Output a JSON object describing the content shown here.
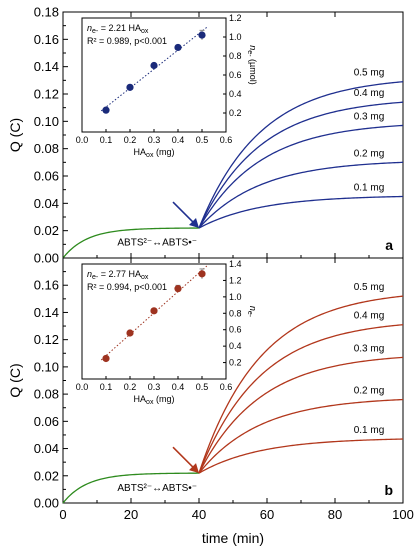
{
  "colors": {
    "green": "#2e8b1e",
    "blue": "#1f2f8f",
    "red": "#b2371c",
    "inset_point_blue": "#1a2a7a",
    "inset_point_red": "#9e3320"
  },
  "labels": {
    "panel_a": "a",
    "panel_b": "b",
    "x_axis": "time (min)",
    "y_axis": "Q (C)",
    "equilibrium": "ABTS²⁻↔ABTS•⁻"
  },
  "chart_data": [
    {
      "type": "line",
      "panel": "a",
      "xlabel": "time (min)",
      "ylabel": "Q (C)",
      "xlim": [
        0,
        100
      ],
      "ylim": [
        0,
        0.18
      ],
      "x_ticks": [
        "0",
        "20",
        "40",
        "60",
        "80",
        "100"
      ],
      "y_ticks": [
        "0.00",
        "0.02",
        "0.04",
        "0.06",
        "0.08",
        "0.10",
        "0.12",
        "0.14",
        "0.16",
        "0.18"
      ],
      "baseline": {
        "x0": 0,
        "x_inject": 40,
        "y_plateau": 0.022
      },
      "series": [
        {
          "name": "0.1 mg",
          "end_value": 0.045
        },
        {
          "name": "0.2 mg",
          "end_value": 0.07
        },
        {
          "name": "0.3 mg",
          "end_value": 0.097
        },
        {
          "name": "0.4 mg",
          "end_value": 0.114
        },
        {
          "name": "0.5 mg",
          "end_value": 0.129
        }
      ],
      "annotation": "ABTS²⁻↔ABTS•⁻",
      "inset": {
        "type": "scatter",
        "equation": "n_e- = 2.21 HA_ox",
        "eq_lead": "n",
        "eq_sub": "e-",
        "eq_mid": " = 2.21 HA",
        "eq_sub2": "ox",
        "stats": "R² = 0.989, p<0.001",
        "xlabel_main": "HA",
        "xlabel_sub": "ox",
        "xlabel_tail": " (mg)",
        "ylabel_main": "n",
        "ylabel_sub": "e-",
        "ylabel_tail": " (µmol)",
        "xlim": [
          0.0,
          0.6
        ],
        "ylim": [
          0.0,
          1.2
        ],
        "x_ticks": [
          "0.0",
          "0.1",
          "0.2",
          "0.3",
          "0.4",
          "0.5",
          "0.6"
        ],
        "y_ticks": [
          "0.2",
          "0.4",
          "0.6",
          "0.8",
          "1.0",
          "1.2"
        ],
        "x": [
          0.1,
          0.2,
          0.3,
          0.4,
          0.5
        ],
        "y": [
          0.23,
          0.47,
          0.7,
          0.89,
          1.02
        ],
        "err": [
          0.0,
          0.0,
          0.0,
          0.0,
          0.05
        ]
      }
    },
    {
      "type": "line",
      "panel": "b",
      "xlabel": "time (min)",
      "ylabel": "Q (C)",
      "xlim": [
        0,
        100
      ],
      "ylim": [
        0,
        0.18
      ],
      "x_ticks": [
        "0",
        "20",
        "40",
        "60",
        "80",
        "100"
      ],
      "y_ticks": [
        "0.00",
        "0.02",
        "0.04",
        "0.06",
        "0.08",
        "0.10",
        "0.12",
        "0.14",
        "0.16",
        "0.18"
      ],
      "baseline": {
        "x0": 0,
        "x_inject": 40,
        "y_plateau": 0.022
      },
      "series": [
        {
          "name": "0.1 mg",
          "end_value": 0.047
        },
        {
          "name": "0.2 mg",
          "end_value": 0.076
        },
        {
          "name": "0.3 mg",
          "end_value": 0.107
        },
        {
          "name": "0.4 mg",
          "end_value": 0.131
        },
        {
          "name": "0.5 mg",
          "end_value": 0.152
        }
      ],
      "annotation": "ABTS²⁻↔ABTS•⁻",
      "inset": {
        "type": "scatter",
        "equation": "n_e- = 2.77 HA_ox",
        "eq_lead": "n",
        "eq_sub": "e-",
        "eq_mid": " = 2.77 HA",
        "eq_sub2": "ox",
        "stats": "R² = 0.994, p<0.001",
        "xlabel_main": "HA",
        "xlabel_sub": "ox",
        "xlabel_tail": " (mg)",
        "ylabel_main": "n",
        "ylabel_sub": "e-",
        "ylabel_tail": "",
        "xlim": [
          0.0,
          0.6
        ],
        "ylim": [
          0.0,
          1.4
        ],
        "x_ticks": [
          "0.0",
          "0.1",
          "0.2",
          "0.3",
          "0.4",
          "0.5",
          "0.6"
        ],
        "y_ticks": [
          "0.2",
          "0.4",
          "0.6",
          "0.8",
          "1.0",
          "1.2",
          "1.4"
        ],
        "x": [
          0.1,
          0.2,
          0.3,
          0.4,
          0.5
        ],
        "y": [
          0.25,
          0.56,
          0.83,
          1.1,
          1.28
        ],
        "err": [
          0.0,
          0.0,
          0.0,
          0.04,
          0.06
        ]
      }
    }
  ]
}
